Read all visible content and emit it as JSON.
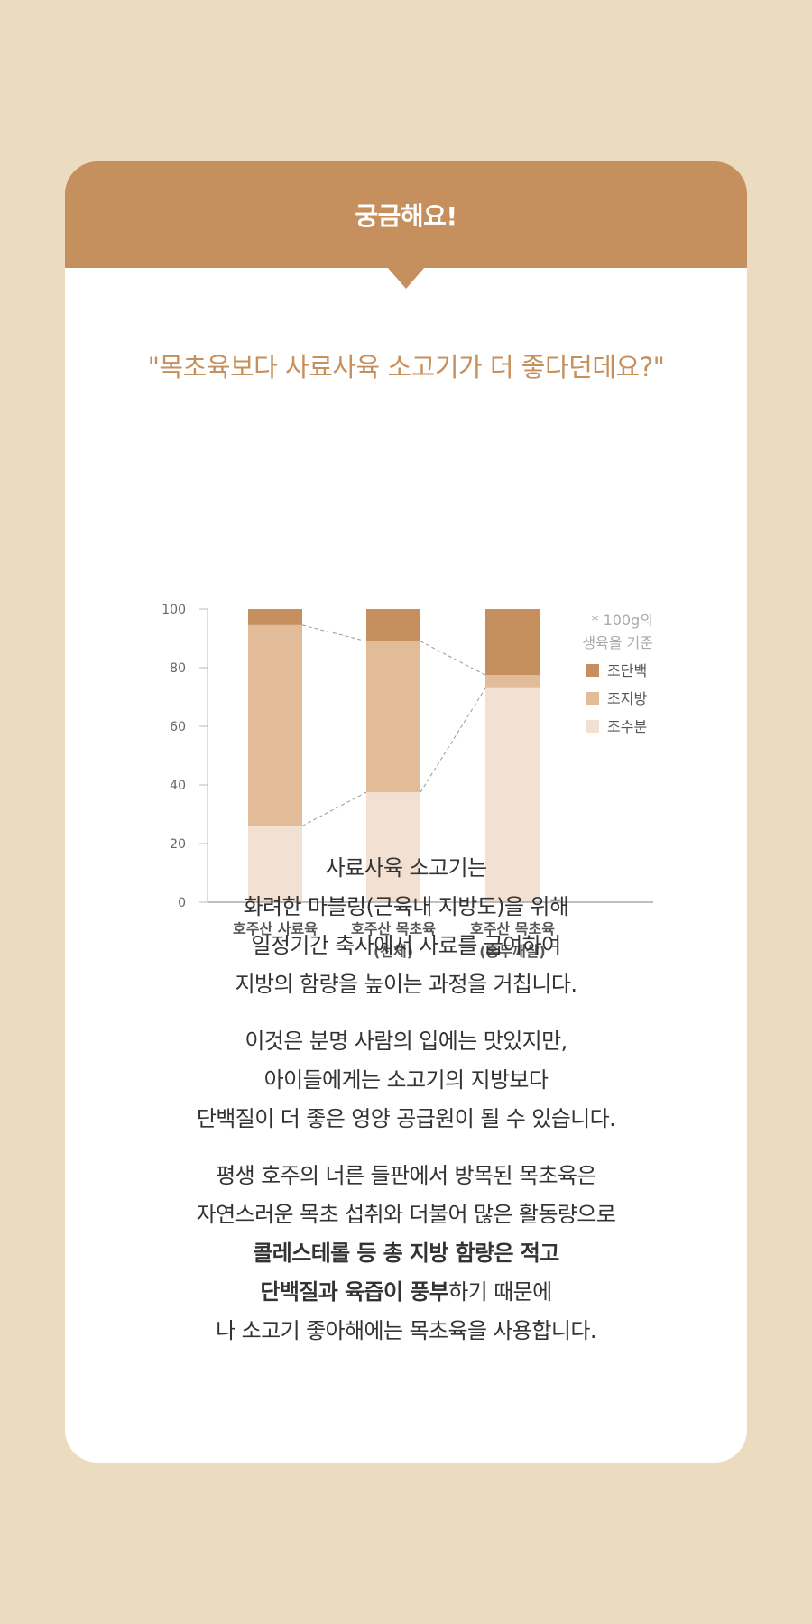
{
  "header": {
    "title": "궁금해요!"
  },
  "question": "\"목초육보다 사료사육 소고기가 더 좋다던데요?\"",
  "chart_data": {
    "type": "bar",
    "stacked": true,
    "categories": [
      {
        "line1": "호주산 사료육",
        "line2": ""
      },
      {
        "line1": "호주산 목초육",
        "line2": "(전체)"
      },
      {
        "line1": "호주산 목초육",
        "line2": "(홍두깨살)"
      }
    ],
    "series": [
      {
        "name": "조수분",
        "values": [
          26,
          37.5,
          73
        ],
        "color": "#f2e0d2"
      },
      {
        "name": "조지방",
        "values": [
          68.5,
          51.5,
          4.5
        ],
        "color": "#e2bb98"
      },
      {
        "name": "조단백",
        "values": [
          5.5,
          11,
          22.5
        ],
        "color": "#c68f5e"
      }
    ],
    "ylim": [
      0,
      100
    ],
    "yticks": [
      "0",
      "20",
      "40",
      "60",
      "80",
      "100"
    ],
    "note_line1": "* 100g의",
    "note_line2": "생육을 기준",
    "legend": [
      {
        "label": "조단백",
        "color": "#c68f5e"
      },
      {
        "label": "조지방",
        "color": "#e2bb98"
      },
      {
        "label": "조수분",
        "color": "#f2e0d2"
      }
    ],
    "legend_position": "top-right"
  },
  "paragraphs": [
    [
      [
        {
          "text": "사료사육 소고기는",
          "bold": false
        }
      ],
      [
        {
          "text": "화려한 마블링(근육내 지방도)을 위해",
          "bold": false
        }
      ],
      [
        {
          "text": "일정기간 축사에서 사료를 급여하여",
          "bold": false
        }
      ],
      [
        {
          "text": "지방의 함량을 높이는 과정을 거칩니다.",
          "bold": false
        }
      ]
    ],
    [
      [
        {
          "text": "이것은 분명 사람의 입에는 맛있지만,",
          "bold": false
        }
      ],
      [
        {
          "text": "아이들에게는 소고기의 지방보다",
          "bold": false
        }
      ],
      [
        {
          "text": "단백질이 더 좋은 영양 공급원이 될 수 있습니다.",
          "bold": false
        }
      ]
    ],
    [
      [
        {
          "text": "평생 호주의 너른 들판에서 방목된 목초육은",
          "bold": false
        }
      ],
      [
        {
          "text": "자연스러운 목초 섭취와 더불어 많은 활동량으로",
          "bold": false
        }
      ],
      [
        {
          "text": "콜레스테롤 등 총 지방 함량은 적고",
          "bold": true
        }
      ],
      [
        {
          "text": "단백질과 육즙이 풍부",
          "bold": true
        },
        {
          "text": "하기 때문에",
          "bold": false
        }
      ],
      [
        {
          "text": "나 소고기 좋아해에는 목초육을 사용합니다.",
          "bold": false
        }
      ]
    ]
  ]
}
